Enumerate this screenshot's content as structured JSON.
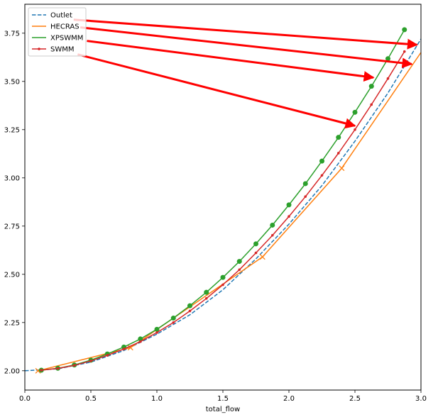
{
  "chart_data": {
    "type": "line",
    "title": "",
    "xlabel": "total_flow",
    "ylabel": "",
    "xlim": [
      0.0,
      3.0
    ],
    "ylim": [
      1.9,
      3.9
    ],
    "x_ticks": [
      0.0,
      0.5,
      1.0,
      1.5,
      2.0,
      2.5,
      3.0
    ],
    "x_tick_labels": [
      "0.0",
      "0.5",
      "1.0",
      "1.5",
      "2.0",
      "2.5",
      "3.0"
    ],
    "y_ticks": [
      2.0,
      2.25,
      2.5,
      2.75,
      3.0,
      3.25,
      3.5,
      3.75
    ],
    "y_tick_labels": [
      "2.00",
      "2.25",
      "2.50",
      "2.75",
      "3.00",
      "3.25",
      "3.50",
      "3.75"
    ],
    "grid": false,
    "legend_position": "upper left",
    "series": [
      {
        "name": "Outlet",
        "color": "#1f77b4",
        "style": "dashed",
        "marker": "none",
        "x": [
          0.0,
          0.25,
          0.5,
          0.75,
          1.0,
          1.25,
          1.5,
          1.75,
          2.0,
          2.25,
          2.5,
          2.75,
          3.0
        ],
        "y": [
          2.0,
          2.01,
          2.045,
          2.105,
          2.19,
          2.29,
          2.42,
          2.58,
          2.76,
          2.96,
          3.19,
          3.44,
          3.72
        ]
      },
      {
        "name": "HECRAS",
        "color": "#ff7f0e",
        "style": "solid",
        "marker": "x",
        "x": [
          0.1,
          0.8,
          1.8,
          2.4,
          3.0
        ],
        "y": [
          2.0,
          2.12,
          2.59,
          3.05,
          3.65
        ],
        "marker_x": [
          0.1,
          0.8,
          1.8,
          2.4
        ],
        "marker_y": [
          2.0,
          2.12,
          2.59,
          3.05
        ]
      },
      {
        "name": "XPSWMM",
        "color": "#2ca02c",
        "style": "solid",
        "marker": "circle",
        "x": [
          0.125,
          0.25,
          0.375,
          0.5,
          0.625,
          0.75,
          0.875,
          1.0,
          1.125,
          1.25,
          1.375,
          1.5,
          1.625,
          1.75,
          1.875,
          2.0,
          2.125,
          2.25,
          2.375,
          2.5,
          2.625,
          2.75,
          2.875
        ],
        "y": [
          2.003,
          2.013,
          2.03,
          2.055,
          2.087,
          2.123,
          2.165,
          2.215,
          2.273,
          2.337,
          2.407,
          2.484,
          2.567,
          2.658,
          2.755,
          2.86,
          2.97,
          3.087,
          3.21,
          3.34,
          3.475,
          3.618,
          3.768
        ]
      },
      {
        "name": "SWMM",
        "color": "#d62728",
        "style": "solid",
        "marker": "point",
        "x": [
          0.125,
          0.25,
          0.375,
          0.5,
          0.625,
          0.75,
          0.875,
          1.0,
          1.125,
          1.25,
          1.375,
          1.5,
          1.625,
          1.75,
          1.875,
          2.0,
          2.125,
          2.25,
          2.375,
          2.5,
          2.625,
          2.75,
          2.875
        ],
        "y": [
          2.003,
          2.012,
          2.028,
          2.051,
          2.08,
          2.113,
          2.151,
          2.198,
          2.25,
          2.31,
          2.375,
          2.446,
          2.524,
          2.611,
          2.702,
          2.8,
          2.903,
          3.013,
          3.128,
          3.25,
          3.38,
          3.515,
          3.655
        ]
      }
    ],
    "annotations": [
      {
        "type": "arrow",
        "color": "#ff0000",
        "from": [
          0.37,
          3.82
        ],
        "to": [
          2.97,
          3.69
        ]
      },
      {
        "type": "arrow",
        "color": "#ff0000",
        "from": [
          0.42,
          3.78
        ],
        "to": [
          2.93,
          3.59
        ]
      },
      {
        "type": "arrow",
        "color": "#ff0000",
        "from": [
          0.47,
          3.71
        ],
        "to": [
          2.64,
          3.52
        ]
      },
      {
        "type": "arrow",
        "color": "#ff0000",
        "from": [
          0.4,
          3.64
        ],
        "to": [
          2.5,
          3.27
        ]
      }
    ]
  }
}
